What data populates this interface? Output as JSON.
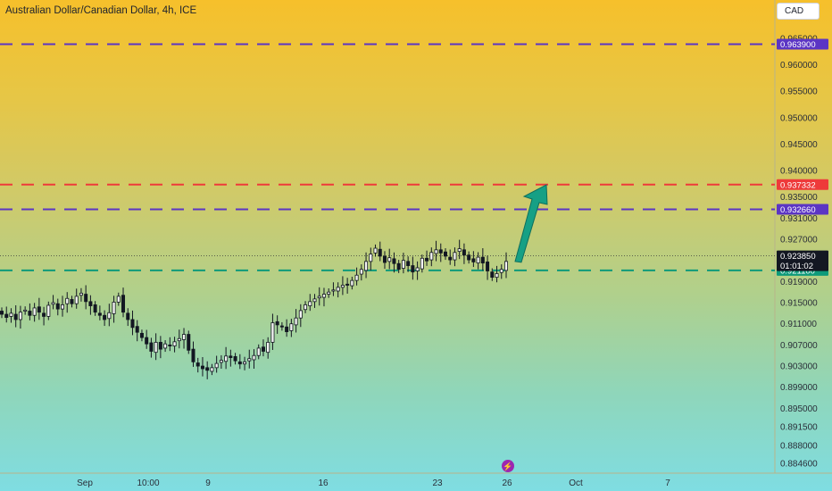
{
  "header": {
    "title": "Australian Dollar/Canadian Dollar, 4h, ICE",
    "currency_button": "CAD"
  },
  "colors": {
    "purple_level": "#5b35c4",
    "red_level": "#ee3a3a",
    "green_level": "#0e9a7a",
    "price_tag": "#131722",
    "arrow": "#16a085",
    "candle": "#131722"
  },
  "chart_data": {
    "type": "candlestick",
    "symbol": "Australian Dollar/Canadian Dollar",
    "interval": "4h",
    "exchange": "ICE",
    "y_axis": {
      "ticks": [
        "0.965000",
        "0.960000",
        "0.955000",
        "0.950000",
        "0.945000",
        "0.940000",
        "0.935000",
        "0.931000",
        "0.927000",
        "0.919000",
        "0.915000",
        "0.911000",
        "0.907000",
        "0.903000",
        "0.899000",
        "0.895000",
        "0.891500",
        "0.888000",
        "0.884600"
      ],
      "ylim": [
        0.8835,
        0.967
      ]
    },
    "x_axis": {
      "ticks": [
        "Sep",
        "10:00",
        "9",
        "16",
        "23",
        "26",
        "Oct",
        "7"
      ]
    },
    "levels": [
      {
        "value": 0.9639,
        "label": "0.963900",
        "color": "#5b35c4",
        "style": "dashed"
      },
      {
        "value": 0.937332,
        "label": "0.937332",
        "color": "#ee3a3a",
        "style": "dashed"
      },
      {
        "value": 0.93266,
        "label": "0.932660",
        "color": "#5b35c4",
        "style": "dashed"
      },
      {
        "value": 0.9211,
        "label": "0.921100",
        "color": "#0e9a7a",
        "style": "dashed"
      }
    ],
    "current_price": {
      "value": 0.92385,
      "label": "0.923850",
      "countdown": "01:01:02"
    },
    "annotation": {
      "type": "arrow",
      "direction": "up",
      "from_price": 0.9228,
      "to_price": 0.9373,
      "color": "#16a085"
    },
    "close_series": [
      0.9128,
      0.9122,
      0.913,
      0.9118,
      0.9132,
      0.9136,
      0.9126,
      0.914,
      0.9132,
      0.9124,
      0.9145,
      0.915,
      0.9138,
      0.9146,
      0.9158,
      0.9148,
      0.9162,
      0.9168,
      0.9152,
      0.9144,
      0.9132,
      0.9126,
      0.9118,
      0.9131,
      0.9151,
      0.9162,
      0.9132,
      0.9118,
      0.9103,
      0.9094,
      0.9084,
      0.9072,
      0.9058,
      0.9075,
      0.9062,
      0.9072,
      0.9068,
      0.9076,
      0.9082,
      0.909,
      0.906,
      0.9038,
      0.903,
      0.9025,
      0.9022,
      0.9027,
      0.9035,
      0.9041,
      0.9049,
      0.9046,
      0.904,
      0.9034,
      0.9038,
      0.9044,
      0.905,
      0.9064,
      0.9058,
      0.9075,
      0.9112,
      0.9108,
      0.9104,
      0.9095,
      0.911,
      0.9121,
      0.9135,
      0.9146,
      0.9152,
      0.9157,
      0.9162,
      0.9166,
      0.917,
      0.9174,
      0.9179,
      0.9183,
      0.9184,
      0.9192,
      0.9202,
      0.9213,
      0.9228,
      0.9242,
      0.9253,
      0.9238,
      0.9226,
      0.9235,
      0.9224,
      0.9213,
      0.923,
      0.922,
      0.9208,
      0.9216,
      0.9234,
      0.9229,
      0.9245,
      0.925,
      0.9244,
      0.9238,
      0.9231,
      0.9245,
      0.9252,
      0.924,
      0.9231,
      0.9227,
      0.9236,
      0.9225,
      0.921,
      0.9198,
      0.9205,
      0.9213,
      0.9228
    ]
  },
  "footer": {
    "logo_label": "⚡"
  }
}
